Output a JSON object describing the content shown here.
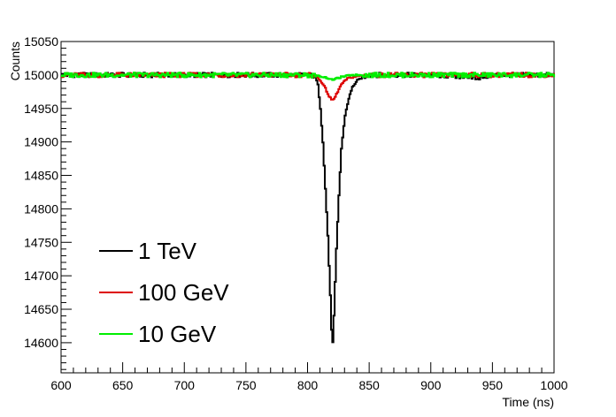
{
  "chart_data": {
    "type": "line",
    "title": "",
    "xlabel": "Time (ns)",
    "ylabel": "Counts",
    "xlim": [
      600,
      1000
    ],
    "ylim": [
      14555,
      15050
    ],
    "x_ticks": [
      "600",
      "650",
      "700",
      "750",
      "800",
      "850",
      "900",
      "950",
      "1000"
    ],
    "y_ticks": [
      "14600",
      "14650",
      "14700",
      "14750",
      "14800",
      "14850",
      "14900",
      "14950",
      "15000",
      "15050"
    ],
    "grid": false,
    "legend_position": "bottom-left",
    "series": [
      {
        "name": "1 TeV",
        "color": "#000000",
        "points": [
          [
            600,
            15000
          ],
          [
            640,
            15000
          ],
          [
            700,
            15000
          ],
          [
            750,
            15000
          ],
          [
            790,
            15000
          ],
          [
            800,
            15000
          ],
          [
            806,
            14998
          ],
          [
            808,
            14985
          ],
          [
            810,
            14950
          ],
          [
            812,
            14900
          ],
          [
            814,
            14830
          ],
          [
            816,
            14760
          ],
          [
            818,
            14670
          ],
          [
            819,
            14620
          ],
          [
            820,
            14600
          ],
          [
            821,
            14640
          ],
          [
            823,
            14740
          ],
          [
            825,
            14820
          ],
          [
            827,
            14890
          ],
          [
            830,
            14940
          ],
          [
            833,
            14965
          ],
          [
            836,
            14982
          ],
          [
            840,
            14992
          ],
          [
            845,
            14997
          ],
          [
            850,
            15000
          ],
          [
            900,
            15000
          ],
          [
            940,
            14996
          ],
          [
            950,
            15000
          ],
          [
            1000,
            15000
          ]
        ]
      },
      {
        "name": "100 GeV",
        "color": "#dd0000",
        "points": [
          [
            600,
            15000
          ],
          [
            700,
            15000
          ],
          [
            800,
            15000
          ],
          [
            806,
            14999
          ],
          [
            810,
            14992
          ],
          [
            814,
            14980
          ],
          [
            817,
            14968
          ],
          [
            819,
            14963
          ],
          [
            821,
            14964
          ],
          [
            824,
            14975
          ],
          [
            827,
            14986
          ],
          [
            832,
            14995
          ],
          [
            840,
            14998
          ],
          [
            850,
            15000
          ],
          [
            900,
            15000
          ],
          [
            1000,
            15000
          ]
        ]
      },
      {
        "name": "10 GeV",
        "color": "#00ee00",
        "points": [
          [
            600,
            15000
          ],
          [
            700,
            15000
          ],
          [
            800,
            15000
          ],
          [
            810,
            14998
          ],
          [
            815,
            14996
          ],
          [
            819,
            14993
          ],
          [
            822,
            14994
          ],
          [
            827,
            14997
          ],
          [
            835,
            15000
          ],
          [
            900,
            15000
          ],
          [
            1000,
            15000
          ]
        ]
      }
    ]
  }
}
